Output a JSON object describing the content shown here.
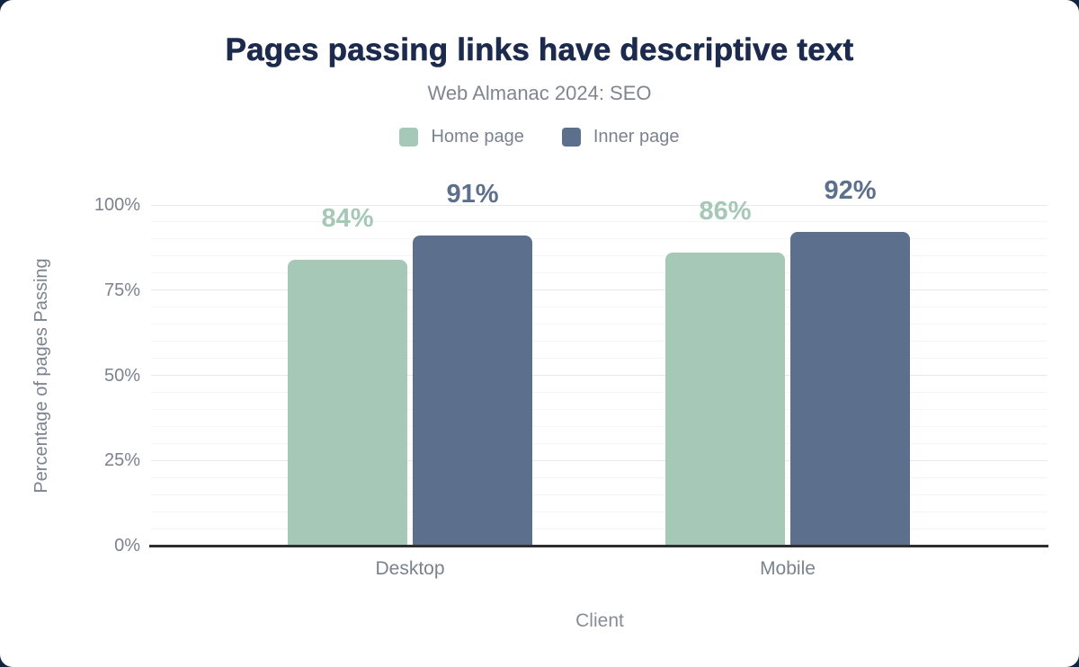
{
  "page": {
    "background_color": "#132440",
    "card_color": "#ffffff",
    "title_color": "#1c2b4d",
    "muted_text_color": "#7b828e",
    "baseline_color": "#2d2e30"
  },
  "chart_data": {
    "type": "bar",
    "title": "Pages passing links have descriptive text",
    "subtitle": "Web Almanac 2024: SEO",
    "categories": [
      "Desktop",
      "Mobile"
    ],
    "series": [
      {
        "name": "Home page",
        "color": "#a6c8b6",
        "values": [
          84,
          86
        ]
      },
      {
        "name": "Inner page",
        "color": "#5c6f8d",
        "values": [
          91,
          92
        ]
      }
    ],
    "data_labels": [
      [
        "84%",
        "86%"
      ],
      [
        "91%",
        "92%"
      ]
    ],
    "xlabel": "Client",
    "ylabel": "Percentage of pages Passing",
    "ylim": [
      0,
      100
    ],
    "yticks": [
      {
        "label": "0%",
        "value": 0
      },
      {
        "label": "25%",
        "value": 25
      },
      {
        "label": "50%",
        "value": 50
      },
      {
        "label": "75%",
        "value": 75
      },
      {
        "label": "100%",
        "value": 100
      }
    ],
    "grid": {
      "minor_step": 5,
      "major_step": 25,
      "grid_on": true
    },
    "legend_position": "top"
  }
}
